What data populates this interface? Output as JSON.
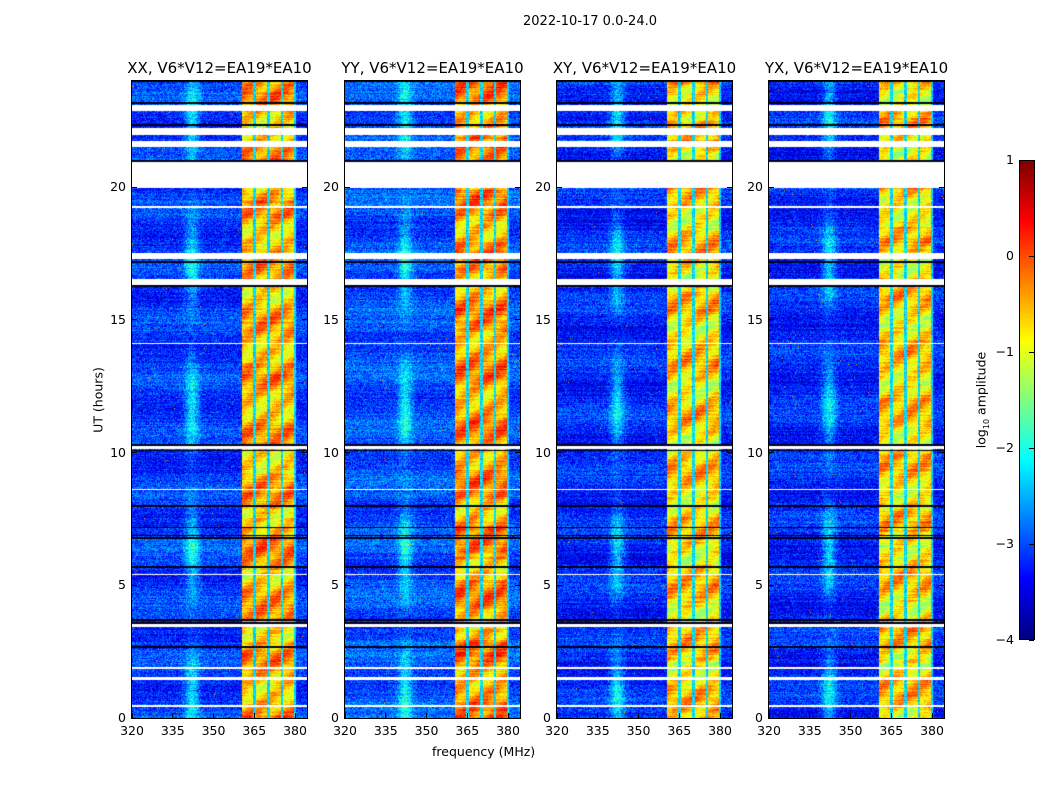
{
  "chart_data": {
    "type": "heatmap",
    "title": "2022-10-17 0.0-24.0",
    "xlabel": "frequency (MHz)",
    "ylabel": "UT (hours)",
    "xlim": [
      320,
      384.4
    ],
    "ylim": [
      0,
      24
    ],
    "xticks": [
      "320",
      "335",
      "350",
      "365",
      "380"
    ],
    "xtick_values": [
      320,
      335,
      350,
      365,
      380
    ],
    "yticks": [
      "0",
      "5",
      "10",
      "15",
      "20"
    ],
    "ytick_values": [
      0,
      5,
      10,
      15,
      20
    ],
    "panels": [
      {
        "title": "XX, V6*V12=EA19*EA10",
        "background_level": -3.1,
        "band_level": -0.5
      },
      {
        "title": "YY, V6*V12=EA19*EA10",
        "background_level": -3.0,
        "band_level": -0.4
      },
      {
        "title": "XY, V6*V12=EA19*EA10",
        "background_level": -3.2,
        "band_level": -0.7
      },
      {
        "title": "YX, V6*V12=EA19*EA10",
        "background_level": -3.2,
        "band_level": -0.7
      }
    ],
    "bright_band_mhz": [
      360.4,
      380.0
    ],
    "band_gaps_mhz": [
      365.0,
      370.0,
      375.0,
      380.0
    ],
    "flagged_hours": [
      [
        20.0,
        20.95
      ],
      [
        21.55,
        21.75
      ],
      [
        22.0,
        22.25
      ],
      [
        22.9,
        23.1
      ],
      [
        17.3,
        17.55
      ],
      [
        16.35,
        16.55
      ],
      [
        10.15,
        10.25
      ],
      [
        3.45,
        3.55
      ],
      [
        1.85,
        1.95
      ],
      [
        1.45,
        1.55
      ],
      [
        19.25,
        19.3
      ],
      [
        14.1,
        14.15
      ],
      [
        8.6,
        8.65
      ],
      [
        5.4,
        5.45
      ],
      [
        0.45,
        0.5
      ]
    ],
    "dark_lines_hours": [
      24.0,
      23.2,
      22.35,
      21.0,
      17.2,
      16.3,
      10.3,
      10.1,
      8.0,
      7.2,
      6.9,
      6.8,
      5.7,
      3.7,
      3.6,
      2.7
    ],
    "colorbar": {
      "label_main": "log",
      "label_sub": "10",
      "label_rest": " amplitude",
      "range": [
        -4,
        1
      ],
      "ticks": [
        "1",
        "0",
        "−1",
        "−2",
        "−3",
        "−4"
      ],
      "tick_values": [
        1,
        0,
        -1,
        -2,
        -3,
        -4
      ],
      "colormap": "jet"
    }
  }
}
